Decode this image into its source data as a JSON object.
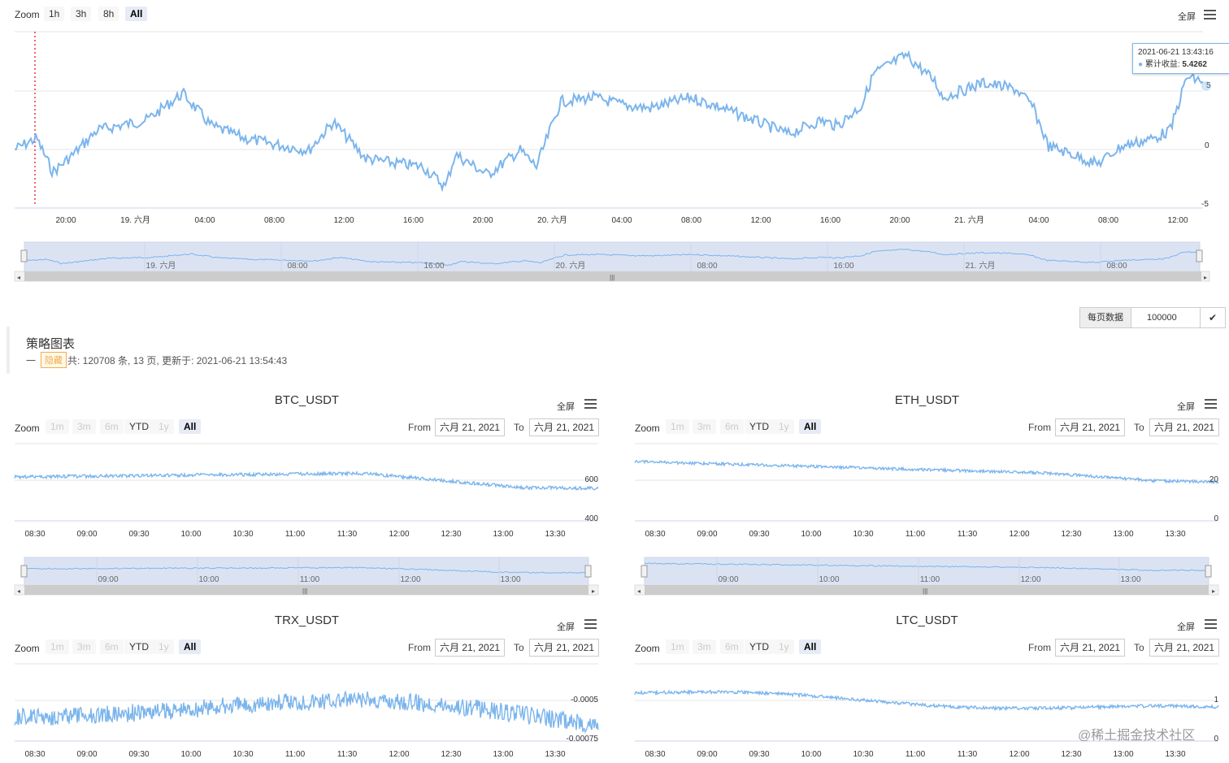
{
  "main_chart": {
    "zoom_label": "Zoom",
    "zoom_buttons": [
      "1h",
      "3h",
      "8h",
      "All"
    ],
    "selected_zoom": "All",
    "fullscreen": "全屏",
    "tooltip": {
      "time": "2021-06-21 13:43:16",
      "series": "累计收益",
      "value": "5.4262"
    },
    "x_ticks": [
      "20:00",
      "19. 六月",
      "04:00",
      "08:00",
      "12:00",
      "16:00",
      "20:00",
      "20. 六月",
      "04:00",
      "08:00",
      "12:00",
      "16:00",
      "20:00",
      "21. 六月",
      "04:00",
      "08:00",
      "12:00"
    ],
    "y_ticks": [
      "5",
      "0",
      "-5"
    ],
    "navigator_labels": [
      "19. 六月",
      "08:00",
      "16:00",
      "20. 六月",
      "08:00",
      "16:00",
      "21. 六月",
      "08:00"
    ],
    "line_color": "#7cb5ec",
    "marker_color": "#e53935"
  },
  "pagination": {
    "label": "每页数据",
    "value": "100000"
  },
  "strategy": {
    "title": "策略图表",
    "dash": "一",
    "hide_badge": "隐藏",
    "summary": "共: 120708 条, 13 页, 更新于: 2021-06-21 13:54:43"
  },
  "small_chart_common": {
    "zoom_label": "Zoom",
    "zoom_buttons": [
      "1m",
      "3m",
      "6m",
      "YTD",
      "1y",
      "All"
    ],
    "from_label": "From",
    "to_label": "To",
    "from_date": "六月 21, 2021",
    "to_date": "六月 21, 2021",
    "fullscreen": "全屏",
    "x_ticks": [
      "08:30",
      "09:00",
      "09:30",
      "10:00",
      "10:30",
      "11:00",
      "11:30",
      "12:00",
      "12:30",
      "13:00",
      "13:30"
    ]
  },
  "charts": [
    {
      "title": "BTC_USDT",
      "y_ticks": [
        "600",
        "400"
      ],
      "navigator_labels": [
        "09:00",
        "10:00",
        "11:00",
        "12:00",
        "13:00"
      ]
    },
    {
      "title": "ETH_USDT",
      "y_ticks": [
        "20",
        "0"
      ],
      "navigator_labels": [
        "09:00",
        "10:00",
        "11:00",
        "12:00",
        "13:00"
      ]
    },
    {
      "title": "TRX_USDT",
      "y_ticks": [
        "-0.0005",
        "-0.00075"
      ]
    },
    {
      "title": "LTC_USDT",
      "y_ticks": [
        "1",
        "0"
      ]
    }
  ],
  "watermark": "@稀土掘金技术社区"
}
